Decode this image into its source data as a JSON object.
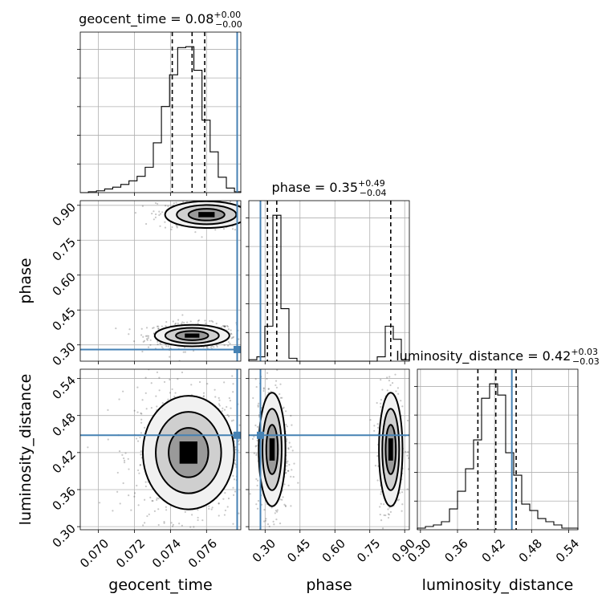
{
  "chart_data": {
    "type": "corner",
    "parameters": [
      "geocent_time",
      "phase",
      "luminosity_distance"
    ],
    "truths": {
      "geocent_time": 0.0777,
      "phase": 0.28,
      "luminosity_distance": 0.448
    },
    "grid": true,
    "marginals": [
      {
        "parameter": "geocent_time",
        "title_name": "geocent_time",
        "title_value": "0.08",
        "title_plus": "+0.00",
        "title_minus": "−0.00",
        "range": [
          0.069,
          0.0779
        ],
        "quantiles": [
          0.0741,
          0.0752,
          0.0759
        ],
        "hist_edges": [
          0.069,
          0.06945,
          0.0699,
          0.07035,
          0.0708,
          0.07125,
          0.0717,
          0.07215,
          0.0726,
          0.07305,
          0.0735,
          0.07395,
          0.0744,
          0.07485,
          0.0753,
          0.07575,
          0.0762,
          0.07665,
          0.0771,
          0.07755,
          0.0779
        ],
        "hist_counts": [
          0,
          1,
          2,
          4,
          6,
          9,
          13,
          18,
          28,
          55,
          95,
          130,
          160,
          161,
          135,
          80,
          45,
          17,
          5,
          1
        ]
      },
      {
        "parameter": "phase",
        "title_name": "phase",
        "title_value": "0.35",
        "title_plus": "+0.49",
        "title_minus": "−0.04",
        "range": [
          0.23,
          0.92
        ],
        "quantiles": [
          0.31,
          0.35,
          0.84
        ],
        "hist_edges": [
          0.23,
          0.2645,
          0.299,
          0.3335,
          0.368,
          0.4025,
          0.437,
          0.4715,
          0.506,
          0.5405,
          0.575,
          0.6095,
          0.644,
          0.6785,
          0.713,
          0.7475,
          0.782,
          0.8165,
          0.851,
          0.8855,
          0.92
        ],
        "hist_counts": [
          1,
          3,
          24,
          100,
          36,
          2,
          0,
          0,
          0,
          0,
          0,
          0,
          0,
          0,
          0,
          0,
          3,
          24,
          15,
          1
        ]
      },
      {
        "parameter": "luminosity_distance",
        "title_name": "luminosity_distance",
        "title_value": "0.42",
        "title_plus": "+0.03",
        "title_minus": "−0.03",
        "range": [
          0.295,
          0.555
        ],
        "quantiles": [
          0.393,
          0.422,
          0.455
        ],
        "hist_edges": [
          0.295,
          0.308,
          0.321,
          0.334,
          0.347,
          0.36,
          0.373,
          0.386,
          0.399,
          0.412,
          0.425,
          0.438,
          0.451,
          0.464,
          0.477,
          0.49,
          0.503,
          0.516,
          0.529,
          0.542,
          0.555
        ],
        "hist_counts": [
          1,
          2,
          3,
          5,
          13,
          24,
          38,
          56,
          82,
          91,
          84,
          48,
          34,
          16,
          12,
          7,
          5,
          3,
          1,
          1
        ]
      }
    ],
    "panels_2d": [
      {
        "x": "geocent_time",
        "y": "phase",
        "modes": [
          {
            "x_center": 0.0752,
            "y_center": 0.34,
            "x_sigma": 0.0009,
            "y_sigma": 0.02,
            "weight": 0.65
          },
          {
            "x_center": 0.076,
            "y_center": 0.86,
            "x_sigma": 0.001,
            "y_sigma": 0.025,
            "weight": 0.35
          }
        ]
      },
      {
        "x": "geocent_time",
        "y": "luminosity_distance",
        "modes": [
          {
            "x_center": 0.075,
            "y_center": 0.42,
            "x_sigma": 0.0011,
            "y_sigma": 0.04,
            "weight": 1.0
          }
        ]
      },
      {
        "x": "phase",
        "y": "luminosity_distance",
        "modes": [
          {
            "x_center": 0.33,
            "y_center": 0.425,
            "x_sigma": 0.025,
            "y_sigma": 0.04,
            "weight": 0.65
          },
          {
            "x_center": 0.84,
            "y_center": 0.425,
            "x_sigma": 0.022,
            "y_sigma": 0.04,
            "weight": 0.35
          }
        ]
      }
    ],
    "ticks": {
      "geocent_time": [
        "0.070",
        "0.072",
        "0.074",
        "0.076"
      ],
      "phase": [
        "0.30",
        "0.45",
        "0.60",
        "0.75",
        "0.90"
      ],
      "luminosity_distance": [
        "0.30",
        "0.36",
        "0.42",
        "0.48",
        "0.54"
      ]
    },
    "xlabels": [
      "geocent_time",
      "phase",
      "luminosity_distance"
    ],
    "ylabels": [
      "phase",
      "luminosity_distance"
    ]
  }
}
